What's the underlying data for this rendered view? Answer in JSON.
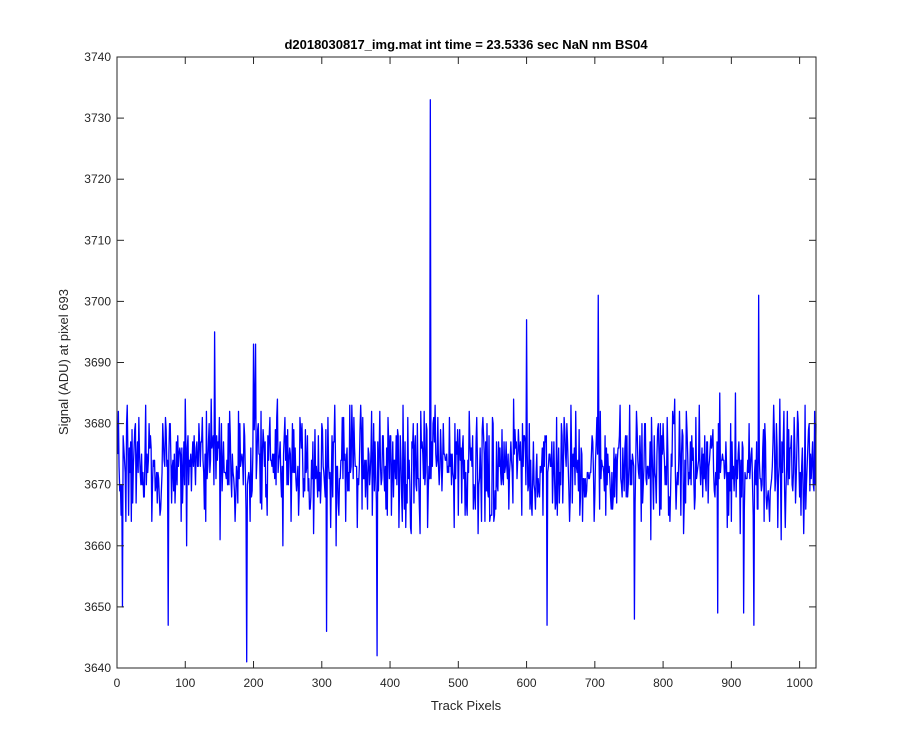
{
  "chart_data": {
    "type": "line",
    "title": "d2018030817_img.mat int time = 23.5336 sec  NaN nm BS04",
    "xlabel": "Track Pixels",
    "ylabel": "Signal (ADU) at pixel 693",
    "xlim": [
      0,
      1024
    ],
    "ylim": [
      3640,
      3740
    ],
    "xticks": [
      0,
      100,
      200,
      300,
      400,
      500,
      600,
      700,
      800,
      900,
      1000
    ],
    "yticks": [
      3640,
      3650,
      3660,
      3670,
      3680,
      3690,
      3700,
      3710,
      3720,
      3730,
      3740
    ],
    "grid": false,
    "legend": "none",
    "series": [
      {
        "color": "#0000ff",
        "x_start": 1,
        "x_step": 1,
        "baseline": 3673,
        "noise_amplitude": 9,
        "points": 1024,
        "notable_points": [
          {
            "x": 459,
            "y": 3733
          },
          {
            "x": 2,
            "y": 3682
          },
          {
            "x": 8,
            "y": 3650
          },
          {
            "x": 75,
            "y": 3647
          },
          {
            "x": 143,
            "y": 3695
          },
          {
            "x": 190,
            "y": 3641
          },
          {
            "x": 200,
            "y": 3693
          },
          {
            "x": 203,
            "y": 3693
          },
          {
            "x": 307,
            "y": 3646
          },
          {
            "x": 381,
            "y": 3642
          },
          {
            "x": 600,
            "y": 3697
          },
          {
            "x": 630,
            "y": 3647
          },
          {
            "x": 705,
            "y": 3701
          },
          {
            "x": 758,
            "y": 3648
          },
          {
            "x": 880,
            "y": 3649
          },
          {
            "x": 918,
            "y": 3649
          },
          {
            "x": 933,
            "y": 3647
          },
          {
            "x": 940,
            "y": 3701
          },
          {
            "x": 1020,
            "y": 3670
          },
          {
            "x": 1024,
            "y": 3680
          }
        ]
      }
    ]
  }
}
